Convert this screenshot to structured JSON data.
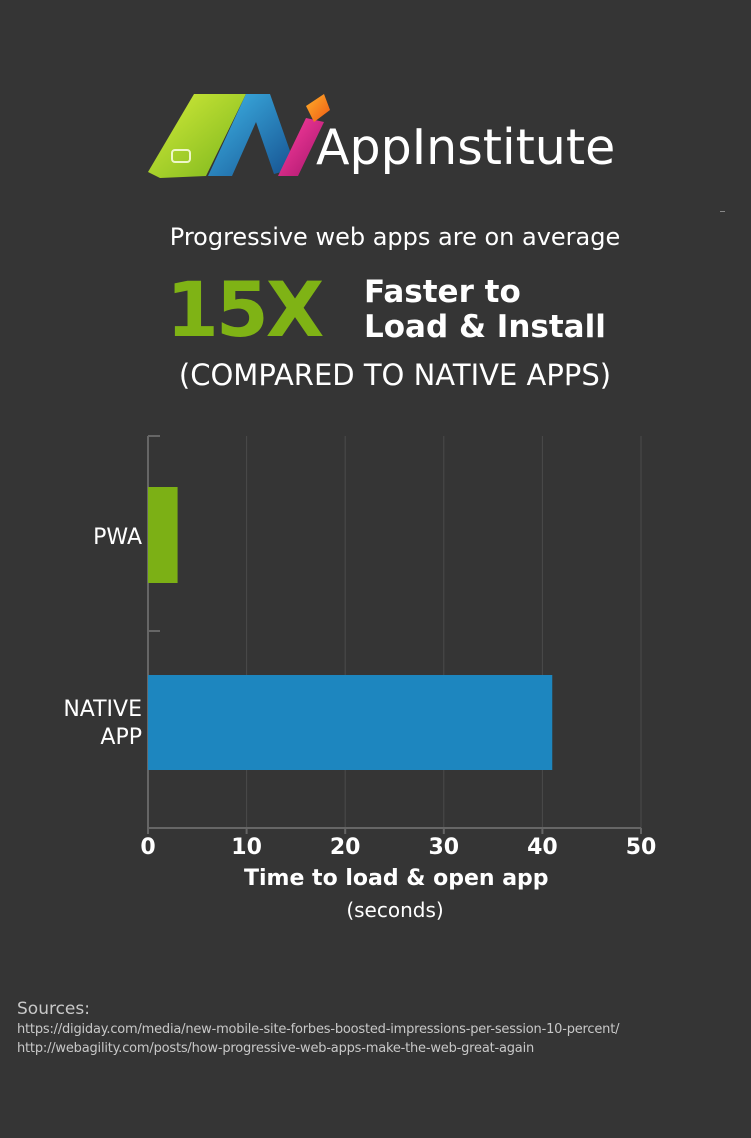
{
  "brand": {
    "name": "AppInstitute",
    "logo_colors": [
      "#9ccc2a",
      "#1e88c9",
      "#e91e8c",
      "#ff7a1a",
      "#7b3fa0"
    ]
  },
  "intro_text": "Progressive web apps are on average",
  "highlight": {
    "number": "15X",
    "line1": "Faster to",
    "line2": "Load & Install",
    "comparison": "(COMPARED TO NATIVE APPS)"
  },
  "chart_data": {
    "type": "bar",
    "orientation": "horizontal",
    "categories": [
      "PWA",
      "NATIVE APP"
    ],
    "category_lines": [
      [
        "PWA"
      ],
      [
        "NATIVE",
        "APP"
      ]
    ],
    "values": [
      3,
      41
    ],
    "colors": [
      "#7cb015",
      "#1d86bf"
    ],
    "xlim": [
      0,
      50
    ],
    "xticks": [
      0,
      10,
      20,
      30,
      40,
      50
    ],
    "xlabel": "Time to load & open app",
    "xunit": "(seconds)",
    "grid": true
  },
  "sources": {
    "title": "Sources:",
    "items": [
      "https://digiday.com/media/new-mobile-site-forbes-boosted-impressions-per-session-10-percent/",
      "http://webagility.com/posts/how-progressive-web-apps-make-the-web-great-again"
    ]
  }
}
